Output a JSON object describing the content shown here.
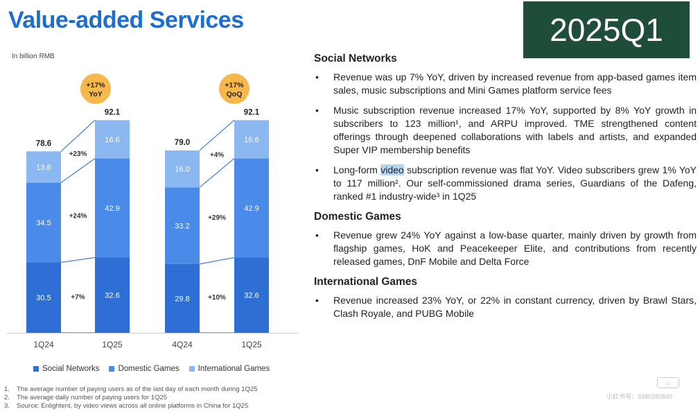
{
  "header": {
    "title": "Value-added Services",
    "period": "2025Q1",
    "unit": "In billion RMB"
  },
  "chart_data": {
    "type": "bar",
    "stacked": true,
    "unit": "In billion RMB",
    "groups": [
      {
        "badge": [
          "+17%",
          "YoY"
        ],
        "categories": [
          "1Q24",
          "1Q25"
        ],
        "series": [
          {
            "name": "Social Networks",
            "values": [
              30.5,
              32.6
            ]
          },
          {
            "name": "Domestic Games",
            "values": [
              34.5,
              42.9
            ]
          },
          {
            "name": "International Games",
            "values": [
              13.6,
              16.6
            ]
          }
        ],
        "totals": [
          "78.6",
          "92.1"
        ],
        "growth": [
          "+7%",
          "+24%",
          "+23%"
        ]
      },
      {
        "badge": [
          "+17%",
          "QoQ"
        ],
        "categories": [
          "4Q24",
          "1Q25"
        ],
        "series": [
          {
            "name": "Social Networks",
            "values": [
              29.8,
              32.6
            ]
          },
          {
            "name": "Domestic Games",
            "values": [
              33.2,
              42.9
            ]
          },
          {
            "name": "International Games",
            "values": [
              16.0,
              16.6
            ]
          }
        ],
        "totals": [
          "79.0",
          "92.1"
        ],
        "growth": [
          "+10%",
          "+29%",
          "+4%"
        ]
      }
    ],
    "legend": [
      "Social Networks",
      "Domestic Games",
      "International Games"
    ],
    "legend_position": "bottom",
    "colors": {
      "social": "#2e6fd6",
      "domestic": "#4a8ae8",
      "international": "#8cb8f2",
      "badge": "#f6b84a"
    }
  },
  "footnotes": [
    {
      "num": "1.",
      "text": "The average number of paying users as of the last day of each month during 1Q25"
    },
    {
      "num": "2.",
      "text": "The average daily number of paying users for 1Q25"
    },
    {
      "num": "3.",
      "text": "Source: Enlightent, by video views across all online platforms in China for 1Q25"
    }
  ],
  "sections": {
    "social": {
      "heading": "Social Networks",
      "b1": "Revenue was up 7% YoY, driven by increased revenue from app-based games item sales, music subscriptions and Mini Games platform service fees",
      "b2": "Music subscription revenue increased 17% YoY, supported by 8% YoY growth in subscribers to 123 million¹, and ARPU improved. TME strengthened content offerings through deepened collaborations with labels and artists, and expanded Super VIP membership benefits",
      "b3_pre": "Long-form ",
      "b3_hl": "video",
      "b3_post": " subscription revenue was flat YoY. Video subscribers grew 1% YoY to 117 million². Our self-commissioned drama series, Guardians of the Dafeng, ranked #1 industry-wide³ in 1Q25"
    },
    "domestic": {
      "heading": "Domestic Games",
      "b1": "Revenue grew 24% YoY against a low-base quarter, mainly driven by growth from flagship games, HoK and Peacekeeper Elite, and contributions from recently released games, DnF Mobile and Delta Force"
    },
    "international": {
      "heading": "International Games",
      "b1": "Revenue increased 23% YoY, or 22% in constant currency, driven by Brawl Stars, Clash Royale, and PUBG Mobile"
    }
  },
  "watermark": "小红书号：3380280840"
}
